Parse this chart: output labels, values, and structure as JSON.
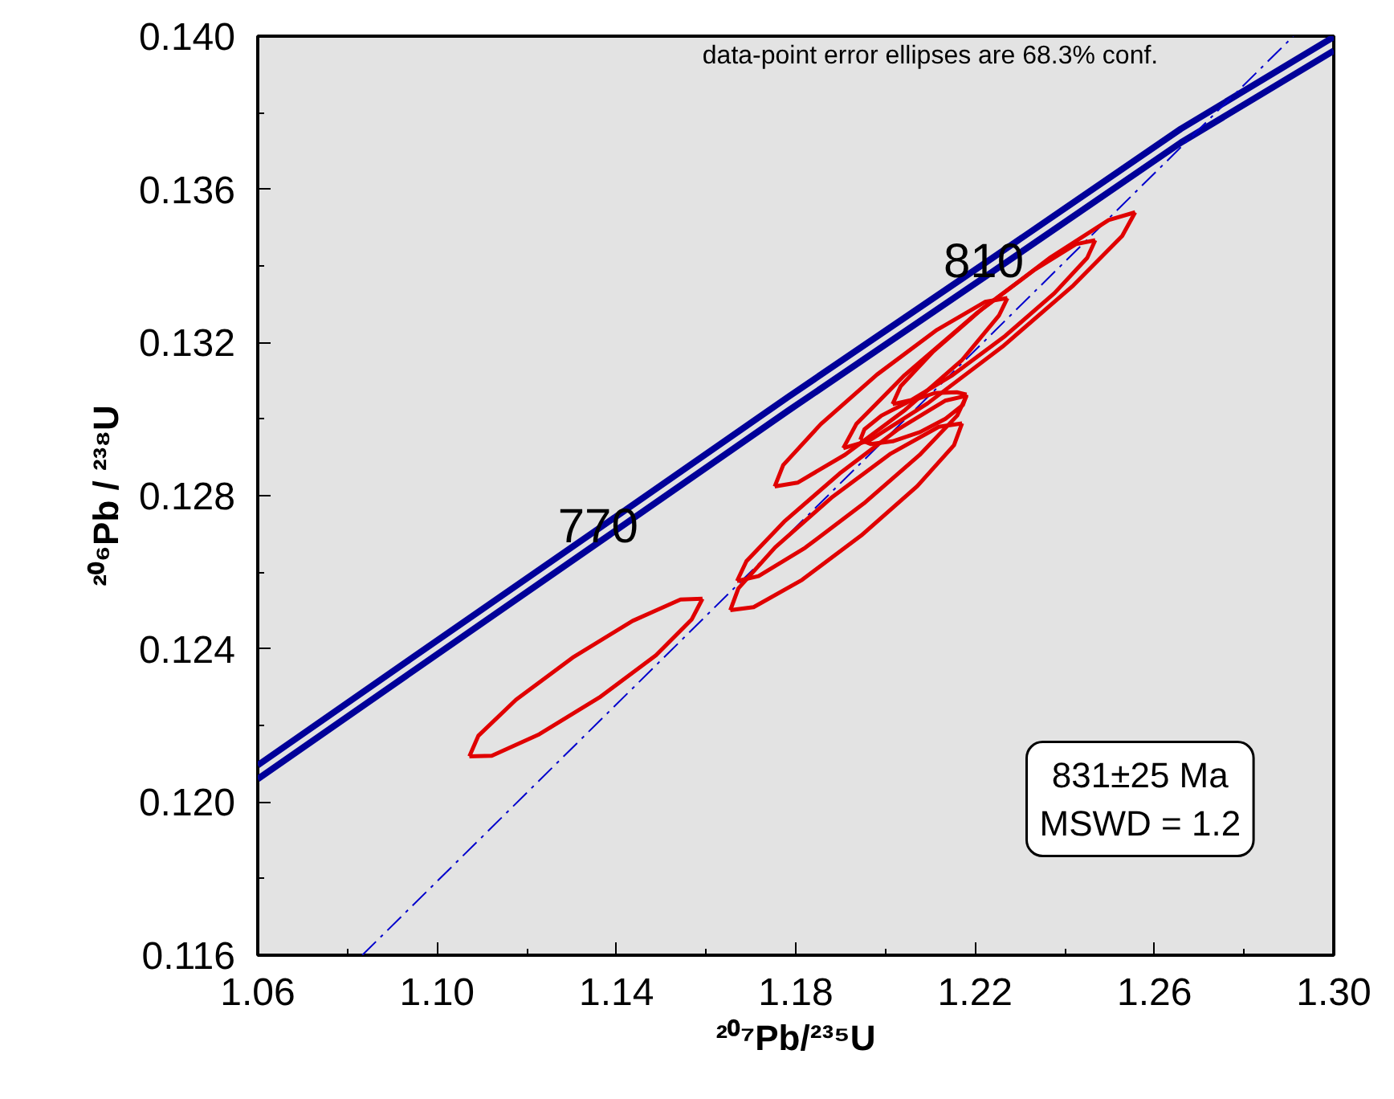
{
  "chart_data": {
    "type": "line",
    "xlabel": "²⁰⁷Pb/²³⁵U",
    "ylabel": "²⁰⁶Pb / ²³⁸U",
    "xlim": [
      1.06,
      1.3
    ],
    "ylim": [
      0.116,
      0.14
    ],
    "xticks": [
      1.06,
      {
        "value": 1.1,
        "label": "1.10"
      },
      1.14,
      1.18,
      1.22,
      1.26,
      {
        "value": 1.3,
        "label": "1.30"
      }
    ],
    "yticks": [
      0.116,
      {
        "value": 0.12,
        "label": "0.120"
      },
      0.124,
      0.128,
      0.132,
      0.136,
      {
        "value": 0.14,
        "label": "0.140"
      }
    ],
    "grid": false,
    "marker": "none",
    "annotations": [
      "data-point error ellipses are 68.3% conf.",
      "831±25 Ma\nMSWD = 1.2",
      {
        "text": "770",
        "x": 1.1359,
        "y": 0.12695
      },
      {
        "text": "810",
        "x": 1.2219,
        "y": 0.13387
      }
    ],
    "series": [
      {
        "color": "#000099",
        "line_style": "solid",
        "x": [
          1.06,
          1.094,
          1.1359,
          1.1782,
          1.2219,
          1.2659,
          1.3
        ],
        "values": [
          0.12096,
          0.12373,
          0.12713,
          0.13057,
          0.13405,
          0.13758,
          0.13998
        ]
      },
      {
        "color": "#000099",
        "line_style": "solid",
        "x": [
          1.06,
          1.094,
          1.1359,
          1.1782,
          1.2219,
          1.2659,
          1.3
        ],
        "values": [
          0.1206,
          0.12337,
          0.12677,
          0.13021,
          0.13369,
          0.13722,
          0.13962
        ]
      },
      {
        "color": "#0000cc",
        "line_style": "dashed",
        "x": [
          1.0833,
          1.291
        ],
        "values": [
          0.116,
          0.14
        ]
      },
      {
        "color": "#e00000",
        "line_style": "solid",
        "x": [
          1.1072,
          1.1122,
          1.1228,
          1.1362,
          1.1488,
          1.1568,
          1.1592
        ],
        "values": [
          0.12119,
          0.12121,
          0.12177,
          0.12273,
          0.12383,
          0.12477,
          0.12531
        ]
      },
      {
        "color": "#e00000",
        "line_style": "solid",
        "x": [
          1.1072,
          1.1092,
          1.1176,
          1.1302,
          1.1436,
          1.1543,
          1.1592
        ],
        "values": [
          0.12119,
          0.12173,
          0.12267,
          0.12377,
          0.12473,
          0.12529,
          0.12531
        ]
      },
      {
        "color": "#e00000",
        "line_style": "solid",
        "x": [
          1.1753,
          1.1804,
          1.191,
          1.2044,
          1.217,
          1.2253,
          1.2272
        ],
        "values": [
          0.12824,
          0.12834,
          0.12907,
          0.13024,
          0.13153,
          0.1327,
          0.13316
        ]
      },
      {
        "color": "#e00000",
        "line_style": "solid",
        "x": [
          1.1753,
          1.1772,
          1.1856,
          1.1981,
          1.2115,
          1.2222,
          1.2272
        ],
        "values": [
          0.12824,
          0.1288,
          0.12987,
          0.13116,
          0.13233,
          0.13306,
          0.13316
        ]
      },
      {
        "color": "#e00000",
        "line_style": "solid",
        "x": [
          1.1944,
          1.1967,
          1.2016,
          1.2077,
          1.2134,
          1.2173,
          1.2181
        ],
        "values": [
          0.12946,
          0.12935,
          0.12942,
          0.12966,
          0.13001,
          0.13037,
          0.13064
        ]
      },
      {
        "color": "#e00000",
        "line_style": "solid",
        "x": [
          1.1944,
          1.1953,
          1.1991,
          1.2049,
          1.211,
          1.2159,
          1.2181
        ],
        "values": [
          0.12946,
          0.12973,
          0.13009,
          0.13044,
          0.13068,
          0.1307,
          0.13064
        ]
      },
      {
        "color": "#e00000",
        "line_style": "solid",
        "x": [
          1.2016,
          1.2058,
          1.215,
          1.2267,
          1.2377,
          1.245,
          1.2468
        ],
        "values": [
          0.13039,
          0.1305,
          0.13115,
          0.13217,
          0.13329,
          0.13421,
          0.13467
        ]
      },
      {
        "color": "#e00000",
        "line_style": "solid",
        "x": [
          1.2016,
          1.2034,
          1.2107,
          1.2217,
          1.2334,
          1.2425,
          1.2468
        ],
        "values": [
          0.13039,
          0.13086,
          0.13177,
          0.13289,
          0.13391,
          0.13457,
          0.13467
        ]
      },
      {
        "color": "#e00000",
        "line_style": "solid",
        "x": [
          1.1906,
          1.1964,
          1.2094,
          1.2261,
          1.2419,
          1.2528,
          1.2557
        ],
        "values": [
          0.12924,
          0.12944,
          0.13041,
          0.13189,
          0.13349,
          0.13478,
          0.1354
        ]
      },
      {
        "color": "#e00000",
        "line_style": "solid",
        "x": [
          1.1906,
          1.1935,
          1.2043,
          1.2202,
          1.2369,
          1.2498,
          1.2557
        ],
        "values": [
          0.12924,
          0.12987,
          0.13115,
          0.13275,
          0.13423,
          0.1352,
          0.1354
        ]
      },
      {
        "color": "#e00000",
        "line_style": "solid",
        "x": [
          1.1669,
          1.1717,
          1.1821,
          1.1952,
          1.2076,
          1.216,
          1.2181
        ],
        "values": [
          0.12577,
          0.1259,
          0.12664,
          0.1278,
          0.12906,
          0.13009,
          0.13061
        ]
      },
      {
        "color": "#e00000",
        "line_style": "solid",
        "x": [
          1.1669,
          1.169,
          1.1774,
          1.1898,
          1.2029,
          1.2133,
          1.2181
        ],
        "values": [
          0.12577,
          0.12629,
          0.12732,
          0.12858,
          0.12974,
          0.13048,
          0.13061
        ]
      },
      {
        "color": "#e00000",
        "line_style": "solid",
        "x": [
          1.1654,
          1.1706,
          1.1814,
          1.1946,
          1.2071,
          1.2153,
          1.2171
        ],
        "values": [
          0.12501,
          0.12509,
          0.1258,
          0.12696,
          0.12825,
          0.12932,
          0.12989
        ]
      },
      {
        "color": "#e00000",
        "line_style": "solid",
        "x": [
          1.1654,
          1.1672,
          1.1754,
          1.1879,
          1.2012,
          1.2119,
          1.2171
        ],
        "values": [
          0.12501,
          0.12558,
          0.12665,
          0.12794,
          0.1291,
          0.1298,
          0.12989
        ]
      }
    ]
  }
}
